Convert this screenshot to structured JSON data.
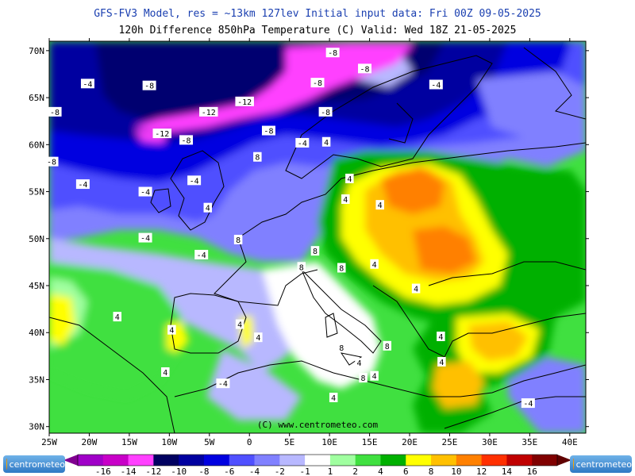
{
  "title_line1": "GFS-FV3 Model, res = ~13km 127lev   Initial input data: Fri 00Z 09-05-2025",
  "title_line2": "120h Difference 850hPa Temperature (C)  Valid: Wed 18Z 21-05-2025",
  "copyright": "(C) www.centrometeo.com",
  "logo_text": "centrometeo",
  "lat_labels": [
    "70N",
    "65N",
    "60N",
    "55N",
    "50N",
    "45N",
    "40N",
    "35N",
    "30N"
  ],
  "lon_labels": [
    "25W",
    "20W",
    "15W",
    "10W",
    "5W",
    "0",
    "5E",
    "10E",
    "15E",
    "20E",
    "25E",
    "30E",
    "35E",
    "40E"
  ],
  "legend": {
    "labels": [
      "-16",
      "-14",
      "-12",
      "-10",
      "-8",
      "-6",
      "-4",
      "-2",
      "-1",
      "1",
      "2",
      "4",
      "6",
      "8",
      "10",
      "12",
      "14",
      "16"
    ],
    "colors": [
      "#a000c8",
      "#c800c8",
      "#ff40ff",
      "#000060",
      "#0000a0",
      "#0000e0",
      "#5050ff",
      "#8080ff",
      "#b8b8ff",
      "#ffffff",
      "#a0ffa0",
      "#40e040",
      "#00b000",
      "#ffff00",
      "#ffc000",
      "#ff8000",
      "#ff3000",
      "#c00000",
      "#800000"
    ]
  },
  "contour_labels": [
    {
      "t": "-8",
      "lon": 10.4,
      "lat": 69.8
    },
    {
      "t": "-8",
      "lon": 14.4,
      "lat": 68.1
    },
    {
      "t": "-4",
      "lon": -20.2,
      "lat": 66.5
    },
    {
      "t": "-8",
      "lon": -12.5,
      "lat": 66.3
    },
    {
      "t": "-8",
      "lon": 8.5,
      "lat": 66.6
    },
    {
      "t": "-4",
      "lon": 23.3,
      "lat": 66.4
    },
    {
      "t": "-12",
      "lon": -0.6,
      "lat": 64.6
    },
    {
      "t": "-8",
      "lon": -24.3,
      "lat": 63.5
    },
    {
      "t": "-12",
      "lon": -5.1,
      "lat": 63.5
    },
    {
      "t": "-8",
      "lon": 9.5,
      "lat": 63.5
    },
    {
      "t": "-12",
      "lon": -10.9,
      "lat": 61.2
    },
    {
      "t": "-8",
      "lon": 2.4,
      "lat": 61.5
    },
    {
      "t": "-8",
      "lon": -7.9,
      "lat": 60.5
    },
    {
      "t": "-4",
      "lon": 6.6,
      "lat": 60.2
    },
    {
      "t": "-8",
      "lon": -24.7,
      "lat": 58.2
    },
    {
      "t": "4",
      "lon": 9.6,
      "lat": 60.3
    },
    {
      "t": "8",
      "lon": 1.0,
      "lat": 58.7
    },
    {
      "t": "4",
      "lon": 12.5,
      "lat": 56.4
    },
    {
      "t": "-4",
      "lon": -20.8,
      "lat": 55.8
    },
    {
      "t": "-4",
      "lon": -13.0,
      "lat": 55.0
    },
    {
      "t": "-4",
      "lon": -6.9,
      "lat": 56.2
    },
    {
      "t": "4",
      "lon": 12.0,
      "lat": 54.2
    },
    {
      "t": "4",
      "lon": 16.3,
      "lat": 53.6
    },
    {
      "t": "4",
      "lon": -5.2,
      "lat": 53.3
    },
    {
      "t": "-4",
      "lon": -13.0,
      "lat": 50.1
    },
    {
      "t": "8",
      "lon": -1.4,
      "lat": 49.9
    },
    {
      "t": "8",
      "lon": 8.2,
      "lat": 48.7
    },
    {
      "t": "-4",
      "lon": -6.0,
      "lat": 48.3
    },
    {
      "t": "8",
      "lon": 6.5,
      "lat": 47.0
    },
    {
      "t": "8",
      "lon": 11.5,
      "lat": 46.9
    },
    {
      "t": "4",
      "lon": 15.6,
      "lat": 47.3
    },
    {
      "t": "4",
      "lon": -16.5,
      "lat": 41.7
    },
    {
      "t": "4",
      "lon": -9.7,
      "lat": 40.3
    },
    {
      "t": "4",
      "lon": -1.2,
      "lat": 40.9
    },
    {
      "t": "4",
      "lon": 1.1,
      "lat": 39.5
    },
    {
      "t": "4",
      "lon": -10.5,
      "lat": 35.8
    },
    {
      "t": "-4",
      "lon": -3.3,
      "lat": 34.6
    },
    {
      "t": "4",
      "lon": 20.8,
      "lat": 44.7
    },
    {
      "t": "8",
      "lon": 17.2,
      "lat": 38.6
    },
    {
      "t": "8",
      "lon": 11.5,
      "lat": 38.4
    },
    {
      "t": "4",
      "lon": 13.7,
      "lat": 36.8
    },
    {
      "t": "8",
      "lon": 14.2,
      "lat": 35.2
    },
    {
      "t": "4",
      "lon": 24.0,
      "lat": 36.9
    },
    {
      "t": "4",
      "lon": 15.6,
      "lat": 35.4
    },
    {
      "t": "4",
      "lon": 23.9,
      "lat": 39.6
    },
    {
      "t": "4",
      "lon": 10.5,
      "lat": 33.1
    },
    {
      "t": "-4",
      "lon": 34.8,
      "lat": 32.5
    }
  ]
}
